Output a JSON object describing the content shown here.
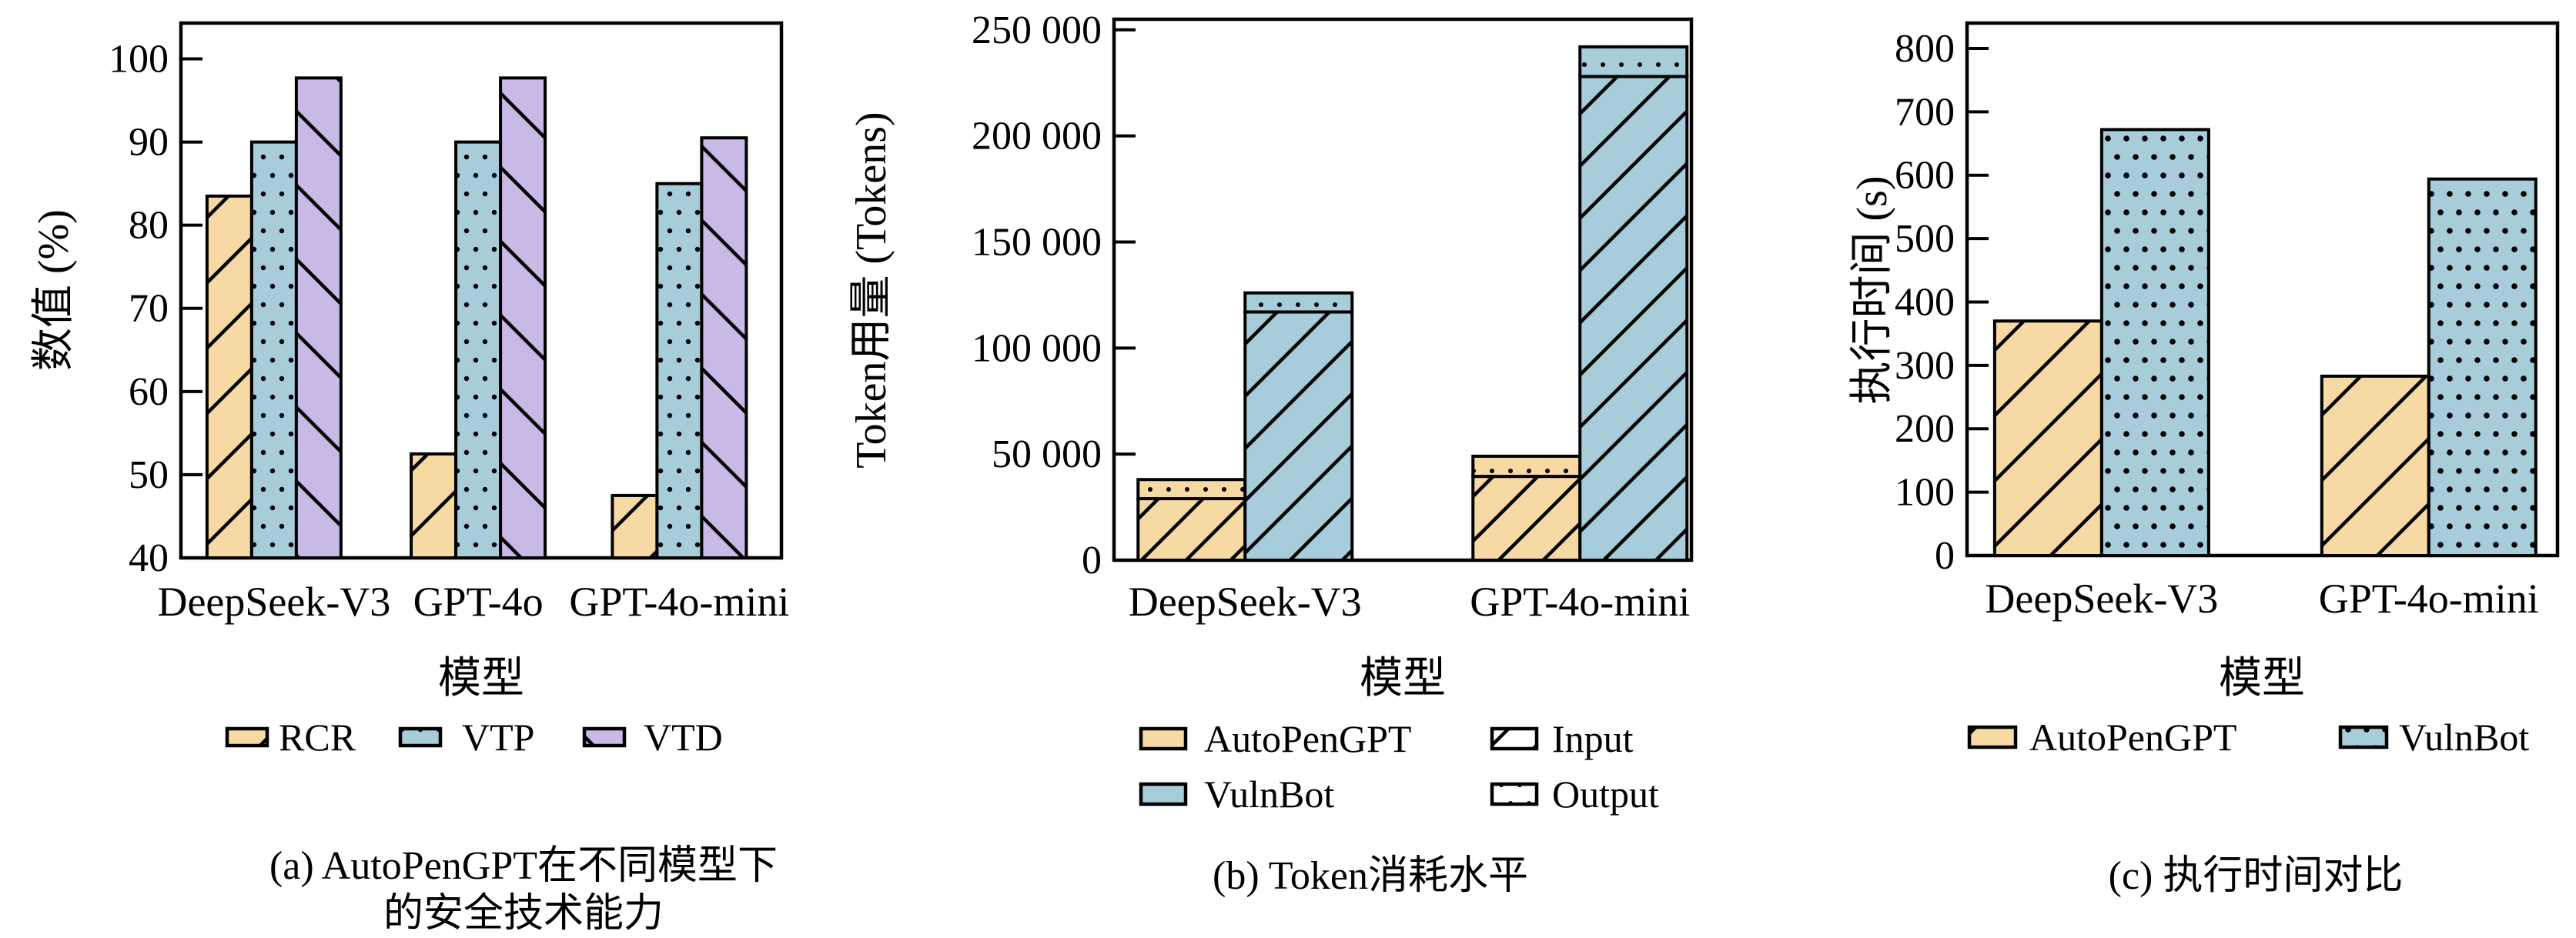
{
  "page": {
    "background": "#ffffff"
  },
  "colors": {
    "bar_orange": "#F7D9A4",
    "bar_blue": "#A7CCDA",
    "bar_purple": "#C8B9E6",
    "bar_outline": "#000000"
  },
  "chart_data": [
    {
      "id": "a",
      "type": "bar",
      "caption": "(a) AutoPenGPT在不同模型下\n的安全技术能力",
      "xlabel": "模型",
      "ylabel": "数值 (%)",
      "ylim": [
        40,
        104.3
      ],
      "grid": false,
      "legend_position": "bottom",
      "yticks": [
        {
          "value": 40,
          "label": "40"
        },
        {
          "value": 50,
          "label": "50"
        },
        {
          "value": 60,
          "label": "60"
        },
        {
          "value": 70,
          "label": "70"
        },
        {
          "value": 80,
          "label": "80"
        },
        {
          "value": 90,
          "label": "90"
        },
        {
          "value": 100,
          "label": "100"
        }
      ],
      "categories": [
        "DeepSeek-V3",
        "GPT-4o",
        "GPT-4o-mini"
      ],
      "series": [
        {
          "name": "RCR",
          "color": "#F7D9A4",
          "hatch": "/",
          "values": [
            83.5,
            52.5,
            47.5
          ]
        },
        {
          "name": "VTP",
          "color": "#A7CCDA",
          "hatch": "dots",
          "values": [
            90.0,
            90.0,
            85.0
          ]
        },
        {
          "name": "VTD",
          "color": "#C8B9E6",
          "hatch": "\\",
          "values": [
            97.7,
            97.7,
            90.5
          ]
        }
      ],
      "legend": [
        {
          "label": "RCR",
          "swatch": {
            "color": "#F7D9A4",
            "hatch": "/"
          }
        },
        {
          "label": "VTP",
          "swatch": {
            "color": "#A7CCDA",
            "hatch": "dots"
          }
        },
        {
          "label": "VTD",
          "swatch": {
            "color": "#C8B9E6",
            "hatch": "\\"
          }
        }
      ]
    },
    {
      "id": "b",
      "type": "stacked-bar",
      "caption": "(b) Token消耗水平",
      "xlabel": "模型",
      "ylabel": "Token用量 (Tokens)",
      "ylim": [
        0,
        255000
      ],
      "grid": false,
      "legend_position": "bottom",
      "yticks": [
        {
          "value": 0,
          "label": "0"
        },
        {
          "value": 50000,
          "label": "50 000"
        },
        {
          "value": 100000,
          "label": "100 000"
        },
        {
          "value": 150000,
          "label": "150 000"
        },
        {
          "value": 200000,
          "label": "200 000"
        },
        {
          "value": 250000,
          "label": "250 000"
        }
      ],
      "categories": [
        "DeepSeek-V3",
        "GPT-4o-mini"
      ],
      "stacks": [
        {
          "name": "Input",
          "hatch": "/"
        },
        {
          "name": "Output",
          "hatch": "dots"
        }
      ],
      "series": [
        {
          "name": "AutoPenGPT",
          "color": "#F7D9A4",
          "values": [
            {
              "Input": 29000,
              "Output": 9000
            },
            {
              "Input": 39500,
              "Output": 9500
            }
          ]
        },
        {
          "name": "VulnBot",
          "color": "#A7CCDA",
          "values": [
            {
              "Input": 117000,
              "Output": 9000
            },
            {
              "Input": 228000,
              "Output": 14000
            }
          ]
        }
      ],
      "legend": [
        {
          "label": "AutoPenGPT",
          "swatch": {
            "color": "#F7D9A4",
            "hatch": "none"
          }
        },
        {
          "label": "Input",
          "swatch": {
            "color": "#FFFFFF",
            "hatch": "/"
          }
        },
        {
          "label": "VulnBot",
          "swatch": {
            "color": "#A7CCDA",
            "hatch": "none"
          }
        },
        {
          "label": "Output",
          "swatch": {
            "color": "#FFFFFF",
            "hatch": "dots"
          }
        }
      ]
    },
    {
      "id": "c",
      "type": "bar",
      "caption": "(c) 执行时间对比",
      "xlabel": "模型",
      "ylabel": "执行时间 (s)",
      "ylim": [
        0,
        840
      ],
      "grid": false,
      "legend_position": "bottom",
      "yticks": [
        {
          "value": 0,
          "label": "0"
        },
        {
          "value": 100,
          "label": "100"
        },
        {
          "value": 200,
          "label": "200"
        },
        {
          "value": 300,
          "label": "300"
        },
        {
          "value": 400,
          "label": "400"
        },
        {
          "value": 500,
          "label": "500"
        },
        {
          "value": 600,
          "label": "600"
        },
        {
          "value": 700,
          "label": "700"
        },
        {
          "value": 800,
          "label": "800"
        }
      ],
      "categories": [
        "DeepSeek-V3",
        "GPT-4o-mini"
      ],
      "series": [
        {
          "name": "AutoPenGPT",
          "color": "#F7D9A4",
          "hatch": "/",
          "values": [
            370,
            283
          ]
        },
        {
          "name": "VulnBot",
          "color": "#A7CCDA",
          "hatch": "dots",
          "values": [
            672,
            594
          ]
        }
      ],
      "legend": [
        {
          "label": "AutoPenGPT",
          "swatch": {
            "color": "#F7D9A4",
            "hatch": "/"
          }
        },
        {
          "label": "VulnBot",
          "swatch": {
            "color": "#A7CCDA",
            "hatch": "dots"
          }
        }
      ]
    }
  ]
}
